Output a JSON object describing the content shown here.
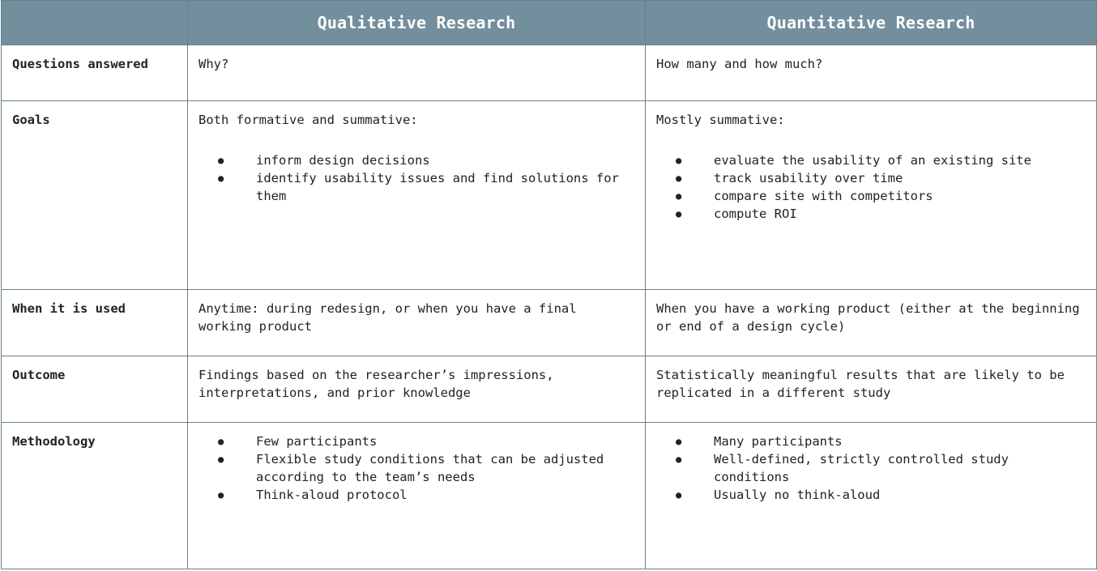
{
  "header": {
    "corner": "",
    "col_qualitative": "Qualitative Research",
    "col_quantitative": "Quantitative Research"
  },
  "rows": {
    "questions": {
      "label": "Questions answered",
      "qualitative": "Why?",
      "quantitative": "How many and how much?"
    },
    "goals": {
      "label": "Goals",
      "qualitative_intro": "Both formative and summative:",
      "qualitative_items": [
        "inform design decisions",
        "identify usability issues and find solutions for them"
      ],
      "quantitative_intro": "Mostly summative:",
      "quantitative_items": [
        "evaluate the usability of an existing site",
        "track usability over time",
        "compare site with competitors",
        "compute ROI"
      ]
    },
    "when_used": {
      "label": "When it is used",
      "qualitative": "Anytime: during redesign, or when you have a final working product",
      "quantitative": "When you have a working product (either at the beginning or end of a design cycle)"
    },
    "outcome": {
      "label": "Outcome",
      "qualitative": "Findings based on the researcher’s impressions, interpretations, and prior knowledge",
      "quantitative": "Statistically meaningful results that are likely to be replicated in a different study"
    },
    "methodology": {
      "label": "Methodology",
      "qualitative_items": [
        "Few participants",
        "Flexible study conditions that can be adjusted according to the team’s needs",
        "Think-aloud protocol"
      ],
      "quantitative_items": [
        "Many participants",
        "Well-defined, strictly controlled study conditions",
        "Usually no think-aloud"
      ]
    }
  },
  "colors": {
    "header_bg": "#738e9d",
    "header_text": "#ffffff",
    "border": "#6b7f8a",
    "body_text": "#222222"
  }
}
